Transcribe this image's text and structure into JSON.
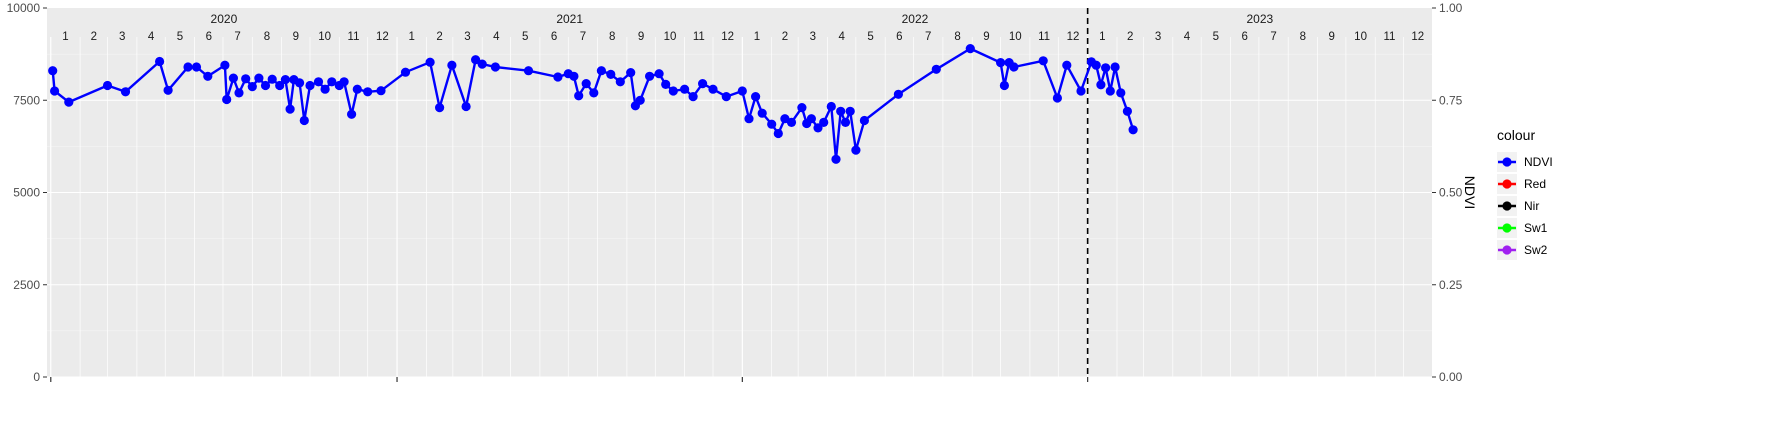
{
  "chart_data": {
    "type": "line",
    "title": "",
    "x_axis": {
      "type": "date",
      "range": [
        "2019-12-28",
        "2023-12-31"
      ],
      "major_ticks": [
        "2020-01-01",
        "2021-01-01",
        "2022-01-01",
        "2023-01-01"
      ],
      "tick_labels_shown": false
    },
    "y_axis_left": {
      "range": [
        0,
        10000
      ],
      "ticks": [
        0,
        2500,
        5000,
        7500,
        10000
      ],
      "tick_labels": [
        "0",
        "2500",
        "5000",
        "7500",
        "10000"
      ],
      "label": ""
    },
    "y_axis_right": {
      "range": [
        0,
        1
      ],
      "ticks": [
        0,
        0.25,
        0.5,
        0.75,
        1
      ],
      "tick_labels": [
        "0.00",
        "0.25",
        "0.50",
        "0.75",
        "1.00"
      ],
      "label": "NDVI"
    },
    "year_labels": [
      "2020",
      "2021",
      "2022",
      "2023"
    ],
    "month_labels": [
      "1",
      "2",
      "3",
      "4",
      "5",
      "6",
      "7",
      "8",
      "9",
      "10",
      "11",
      "12"
    ],
    "vline": {
      "date": "2023-01-01",
      "style": "dashed",
      "color": "#000000"
    },
    "grid": true,
    "legend": {
      "title": "colour",
      "position": "right",
      "entries": [
        "NDVI",
        "Red",
        "Nir",
        "Sw1",
        "Sw2"
      ]
    },
    "colors": {
      "NDVI": "#0000ff",
      "Red": "#ff0000",
      "Nir": "#000000",
      "Sw1": "#00ff00",
      "Sw2": "#a020f0"
    },
    "series": [
      {
        "name": "NDVI",
        "axis": "right",
        "points": [
          [
            "2020-01-03",
            0.83
          ],
          [
            "2020-01-05",
            0.775
          ],
          [
            "2020-01-20",
            0.745
          ],
          [
            "2020-03-01",
            0.79
          ],
          [
            "2020-03-20",
            0.773
          ],
          [
            "2020-04-25",
            0.855
          ],
          [
            "2020-05-04",
            0.777
          ],
          [
            "2020-05-25",
            0.84
          ],
          [
            "2020-06-03",
            0.84
          ],
          [
            "2020-06-15",
            0.815
          ],
          [
            "2020-07-03",
            0.845
          ],
          [
            "2020-07-05",
            0.752
          ],
          [
            "2020-07-12",
            0.81
          ],
          [
            "2020-07-18",
            0.77
          ],
          [
            "2020-07-25",
            0.808
          ],
          [
            "2020-08-01",
            0.787
          ],
          [
            "2020-08-08",
            0.81
          ],
          [
            "2020-08-15",
            0.79
          ],
          [
            "2020-08-22",
            0.807
          ],
          [
            "2020-08-30",
            0.79
          ],
          [
            "2020-09-05",
            0.806
          ],
          [
            "2020-09-10",
            0.726
          ],
          [
            "2020-09-14",
            0.806
          ],
          [
            "2020-09-20",
            0.797
          ],
          [
            "2020-09-25",
            0.695
          ],
          [
            "2020-10-01",
            0.79
          ],
          [
            "2020-10-10",
            0.8
          ],
          [
            "2020-10-17",
            0.78
          ],
          [
            "2020-10-24",
            0.8
          ],
          [
            "2020-11-01",
            0.79
          ],
          [
            "2020-11-06",
            0.8
          ],
          [
            "2020-11-14",
            0.712
          ],
          [
            "2020-11-20",
            0.78
          ],
          [
            "2020-12-01",
            0.773
          ],
          [
            "2020-12-15",
            0.776
          ],
          [
            "2021-01-10",
            0.826
          ],
          [
            "2021-02-05",
            0.853
          ],
          [
            "2021-02-15",
            0.73
          ],
          [
            "2021-02-28",
            0.845
          ],
          [
            "2021-03-15",
            0.733
          ],
          [
            "2021-03-25",
            0.86
          ],
          [
            "2021-04-01",
            0.848
          ],
          [
            "2021-04-15",
            0.84
          ],
          [
            "2021-05-20",
            0.83
          ],
          [
            "2021-06-20",
            0.813
          ],
          [
            "2021-07-01",
            0.822
          ],
          [
            "2021-07-07",
            0.815
          ],
          [
            "2021-07-12",
            0.762
          ],
          [
            "2021-07-20",
            0.795
          ],
          [
            "2021-07-28",
            0.77
          ],
          [
            "2021-08-05",
            0.83
          ],
          [
            "2021-08-15",
            0.82
          ],
          [
            "2021-08-25",
            0.8
          ],
          [
            "2021-09-05",
            0.825
          ],
          [
            "2021-09-10",
            0.735
          ],
          [
            "2021-09-15",
            0.75
          ],
          [
            "2021-09-25",
            0.815
          ],
          [
            "2021-10-05",
            0.822
          ],
          [
            "2021-10-12",
            0.793
          ],
          [
            "2021-10-20",
            0.775
          ],
          [
            "2021-11-01",
            0.78
          ],
          [
            "2021-11-10",
            0.76
          ],
          [
            "2021-11-20",
            0.795
          ],
          [
            "2021-12-01",
            0.78
          ],
          [
            "2021-12-15",
            0.76
          ],
          [
            "2022-01-01",
            0.775
          ],
          [
            "2022-01-08",
            0.7
          ],
          [
            "2022-01-15",
            0.76
          ],
          [
            "2022-01-22",
            0.715
          ],
          [
            "2022-02-01",
            0.685
          ],
          [
            "2022-02-08",
            0.66
          ],
          [
            "2022-02-15",
            0.7
          ],
          [
            "2022-02-22",
            0.69
          ],
          [
            "2022-03-05",
            0.73
          ],
          [
            "2022-03-10",
            0.687
          ],
          [
            "2022-03-15",
            0.7
          ],
          [
            "2022-03-22",
            0.675
          ],
          [
            "2022-03-28",
            0.69
          ],
          [
            "2022-04-05",
            0.733
          ],
          [
            "2022-04-10",
            0.59
          ],
          [
            "2022-04-15",
            0.72
          ],
          [
            "2022-04-20",
            0.69
          ],
          [
            "2022-04-25",
            0.72
          ],
          [
            "2022-05-01",
            0.615
          ],
          [
            "2022-05-10",
            0.695
          ],
          [
            "2022-06-15",
            0.766
          ],
          [
            "2022-07-25",
            0.834
          ],
          [
            "2022-08-30",
            0.89
          ],
          [
            "2022-10-01",
            0.852
          ],
          [
            "2022-10-05",
            0.79
          ],
          [
            "2022-10-10",
            0.852
          ],
          [
            "2022-10-15",
            0.84
          ],
          [
            "2022-11-15",
            0.857
          ],
          [
            "2022-11-30",
            0.756
          ],
          [
            "2022-12-10",
            0.845
          ],
          [
            "2022-12-25",
            0.775
          ],
          [
            "2023-01-05",
            0.854
          ],
          [
            "2023-01-10",
            0.845
          ],
          [
            "2023-01-15",
            0.792
          ],
          [
            "2023-01-20",
            0.838
          ],
          [
            "2023-01-25",
            0.775
          ],
          [
            "2023-01-30",
            0.84
          ],
          [
            "2023-02-05",
            0.77
          ],
          [
            "2023-02-12",
            0.72
          ],
          [
            "2023-02-18",
            0.67
          ]
        ]
      },
      {
        "name": "Red",
        "axis": "left",
        "points": []
      },
      {
        "name": "Nir",
        "axis": "left",
        "points": []
      },
      {
        "name": "Sw1",
        "axis": "left",
        "points": []
      },
      {
        "name": "Sw2",
        "axis": "left",
        "points": []
      }
    ]
  }
}
